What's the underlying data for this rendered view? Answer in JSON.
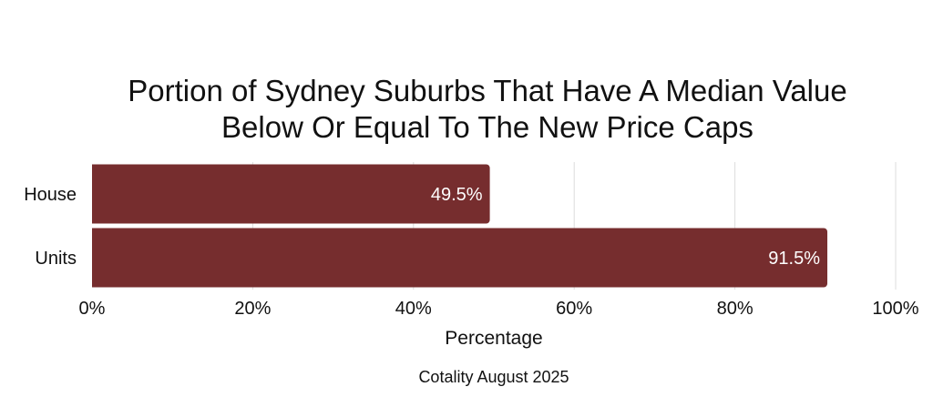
{
  "chart_data": {
    "type": "bar",
    "orientation": "horizontal",
    "title_lines": [
      "Portion of Sydney Suburbs That Have A Median Value",
      "Below Or Equal To The New Price Caps"
    ],
    "categories": [
      "House",
      "Units"
    ],
    "values": [
      49.5,
      91.5
    ],
    "data_labels": [
      "49.5%",
      "91.5%"
    ],
    "xlabel": "Percentage",
    "ylabel": "",
    "xlim": [
      0,
      100
    ],
    "x_ticks": [
      0,
      20,
      40,
      60,
      80,
      100
    ],
    "x_tick_labels": [
      "0%",
      "20%",
      "40%",
      "60%",
      "80%",
      "100%"
    ],
    "grid": true,
    "bar_color": "#762d2e",
    "grid_color": "#dcdcdc",
    "source": "Cotality August 2025"
  }
}
